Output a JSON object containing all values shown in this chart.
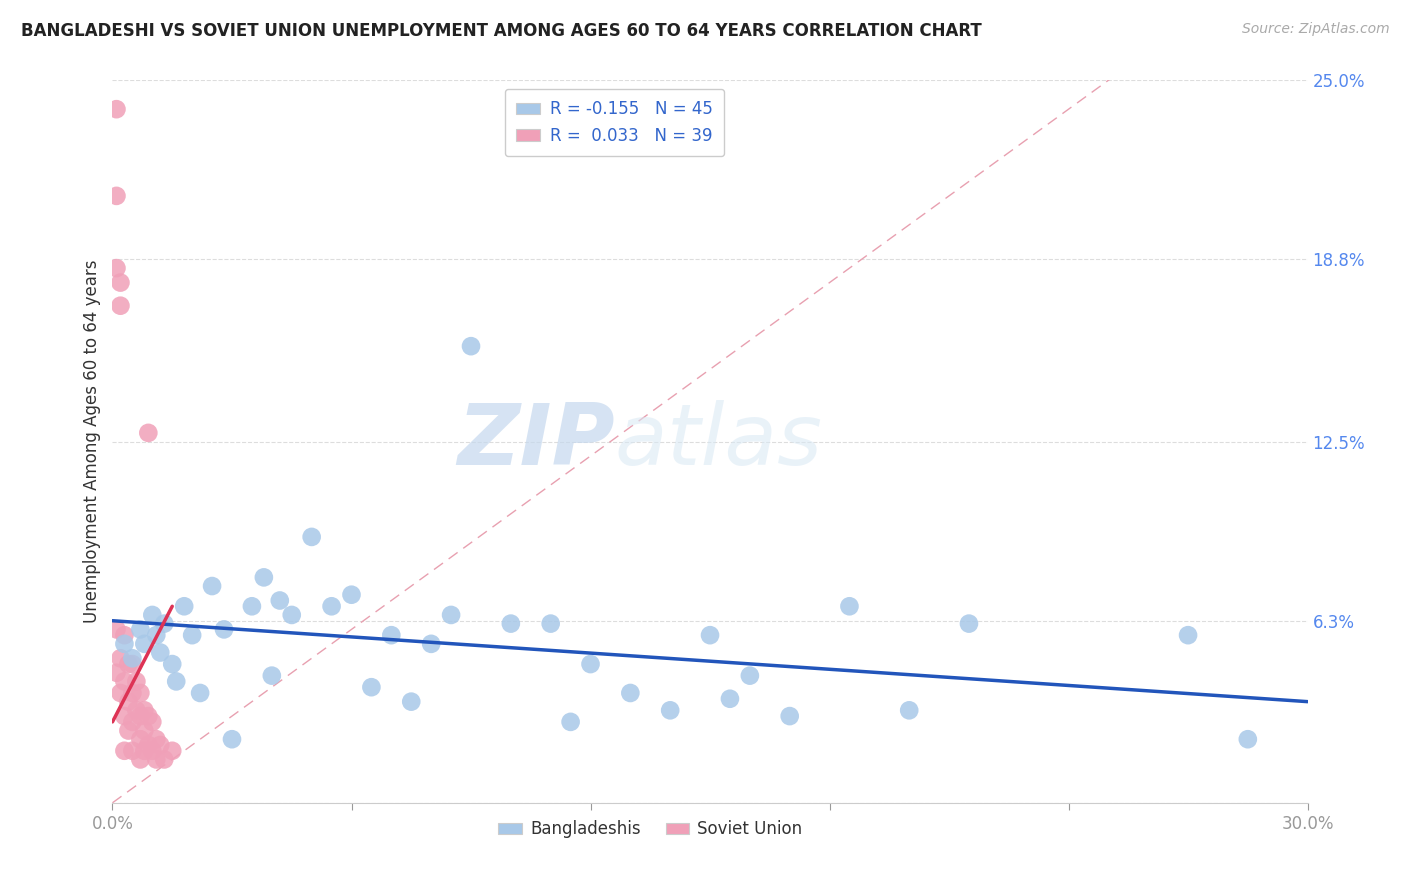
{
  "title": "BANGLADESHI VS SOVIET UNION UNEMPLOYMENT AMONG AGES 60 TO 64 YEARS CORRELATION CHART",
  "source": "Source: ZipAtlas.com",
  "ylabel": "Unemployment Among Ages 60 to 64 years",
  "xlim": [
    0.0,
    0.3
  ],
  "ylim": [
    0.0,
    0.25
  ],
  "ytick_positions": [
    0.0,
    0.063,
    0.125,
    0.188,
    0.25
  ],
  "ytick_labels": [
    "",
    "6.3%",
    "12.5%",
    "18.8%",
    "25.0%"
  ],
  "xtick_positions": [
    0.0,
    0.06,
    0.12,
    0.18,
    0.24,
    0.3
  ],
  "xtick_labels": [
    "0.0%",
    "",
    "",
    "",
    "",
    "30.0%"
  ],
  "legend_R1": "R = ",
  "legend_R1_val": "-0.155",
  "legend_N1": "  N = ",
  "legend_N1_val": "45",
  "legend_R2": "R = ",
  "legend_R2_val": "0.033",
  "legend_N2": "  N = ",
  "legend_N2_val": "39",
  "blue_color": "#a8c8e8",
  "pink_color": "#f0a0b8",
  "blue_line_color": "#2255bb",
  "pink_line_color": "#dd3355",
  "diag_color": "#e8a0b0",
  "watermark_zip": "ZIP",
  "watermark_atlas": "atlas",
  "bangladeshi_x": [
    0.003,
    0.005,
    0.007,
    0.008,
    0.01,
    0.011,
    0.012,
    0.013,
    0.015,
    0.016,
    0.018,
    0.02,
    0.022,
    0.025,
    0.028,
    0.03,
    0.035,
    0.038,
    0.04,
    0.042,
    0.045,
    0.05,
    0.055,
    0.06,
    0.065,
    0.07,
    0.075,
    0.08,
    0.085,
    0.09,
    0.1,
    0.11,
    0.115,
    0.12,
    0.13,
    0.14,
    0.15,
    0.155,
    0.16,
    0.17,
    0.185,
    0.2,
    0.215,
    0.27,
    0.285
  ],
  "bangladeshi_y": [
    0.055,
    0.05,
    0.06,
    0.055,
    0.065,
    0.058,
    0.052,
    0.062,
    0.048,
    0.042,
    0.068,
    0.058,
    0.038,
    0.075,
    0.06,
    0.022,
    0.068,
    0.078,
    0.044,
    0.07,
    0.065,
    0.092,
    0.068,
    0.072,
    0.04,
    0.058,
    0.035,
    0.055,
    0.065,
    0.158,
    0.062,
    0.062,
    0.028,
    0.048,
    0.038,
    0.032,
    0.058,
    0.036,
    0.044,
    0.03,
    0.068,
    0.032,
    0.062,
    0.058,
    0.022
  ],
  "soviet_x": [
    0.001,
    0.001,
    0.001,
    0.001,
    0.001,
    0.002,
    0.002,
    0.002,
    0.002,
    0.003,
    0.003,
    0.003,
    0.003,
    0.004,
    0.004,
    0.004,
    0.005,
    0.005,
    0.005,
    0.005,
    0.006,
    0.006,
    0.007,
    0.007,
    0.007,
    0.007,
    0.008,
    0.008,
    0.008,
    0.009,
    0.009,
    0.009,
    0.01,
    0.01,
    0.011,
    0.011,
    0.012,
    0.013,
    0.015
  ],
  "soviet_y": [
    0.24,
    0.21,
    0.185,
    0.06,
    0.045,
    0.18,
    0.172,
    0.05,
    0.038,
    0.058,
    0.042,
    0.03,
    0.018,
    0.048,
    0.035,
    0.025,
    0.048,
    0.038,
    0.028,
    0.018,
    0.042,
    0.032,
    0.038,
    0.03,
    0.022,
    0.015,
    0.032,
    0.025,
    0.018,
    0.128,
    0.03,
    0.02,
    0.028,
    0.018,
    0.022,
    0.015,
    0.02,
    0.015,
    0.018
  ],
  "blue_line_x0": 0.0,
  "blue_line_x1": 0.3,
  "blue_line_y0": 0.063,
  "blue_line_y1": 0.035,
  "pink_line_x0": 0.0,
  "pink_line_x1": 0.015,
  "pink_line_y0": 0.028,
  "pink_line_y1": 0.068
}
